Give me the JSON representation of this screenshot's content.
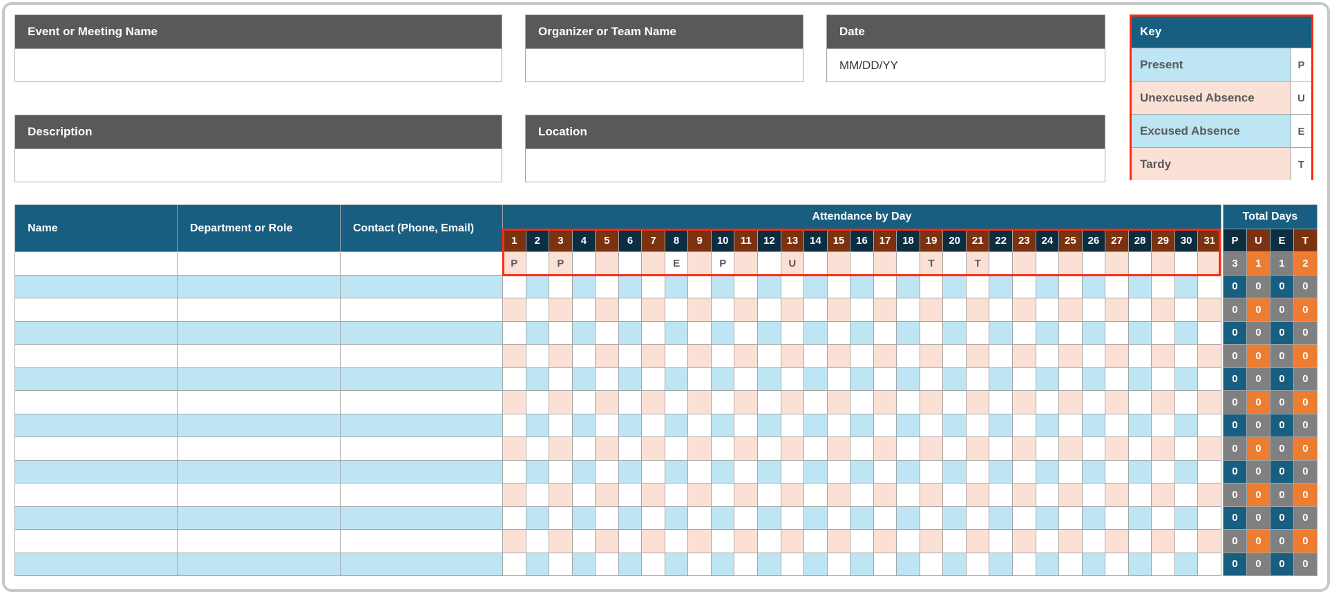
{
  "fields": {
    "event": {
      "label": "Event or Meeting Name",
      "value": ""
    },
    "organizer": {
      "label": "Organizer or Team Name",
      "value": ""
    },
    "date": {
      "label": "Date",
      "value": "MM/DD/YY"
    },
    "description": {
      "label": "Description",
      "value": ""
    },
    "location": {
      "label": "Location",
      "value": ""
    }
  },
  "key": {
    "title": "Key",
    "items": [
      {
        "label": "Present",
        "code": "P"
      },
      {
        "label": "Unexcused Absence",
        "code": "U"
      },
      {
        "label": "Excused Absence",
        "code": "E"
      },
      {
        "label": "Tardy",
        "code": "T"
      }
    ]
  },
  "table": {
    "headers": {
      "name": "Name",
      "dept": "Department or Role",
      "contact": "Contact (Phone, Email)",
      "attendance": "Attendance by Day",
      "totals": "Total Days"
    },
    "days": [
      "1",
      "2",
      "3",
      "4",
      "5",
      "6",
      "7",
      "8",
      "9",
      "10",
      "11",
      "12",
      "13",
      "14",
      "15",
      "16",
      "17",
      "18",
      "19",
      "20",
      "21",
      "22",
      "23",
      "24",
      "25",
      "26",
      "27",
      "28",
      "29",
      "30",
      "31"
    ],
    "total_codes": [
      "P",
      "U",
      "E",
      "T"
    ],
    "rows": [
      {
        "name": "",
        "dept": "",
        "contact": "",
        "marks": {
          "1": "P",
          "3": "P",
          "8": "E",
          "10": "P",
          "13": "U",
          "19": "T",
          "21": "T"
        },
        "totals": [
          "3",
          "1",
          "1",
          "2"
        ]
      },
      {
        "name": "",
        "dept": "",
        "contact": "",
        "marks": {},
        "totals": [
          "0",
          "0",
          "0",
          "0"
        ]
      },
      {
        "name": "",
        "dept": "",
        "contact": "",
        "marks": {},
        "totals": [
          "0",
          "0",
          "0",
          "0"
        ]
      },
      {
        "name": "",
        "dept": "",
        "contact": "",
        "marks": {},
        "totals": [
          "0",
          "0",
          "0",
          "0"
        ]
      },
      {
        "name": "",
        "dept": "",
        "contact": "",
        "marks": {},
        "totals": [
          "0",
          "0",
          "0",
          "0"
        ]
      },
      {
        "name": "",
        "dept": "",
        "contact": "",
        "marks": {},
        "totals": [
          "0",
          "0",
          "0",
          "0"
        ]
      },
      {
        "name": "",
        "dept": "",
        "contact": "",
        "marks": {},
        "totals": [
          "0",
          "0",
          "0",
          "0"
        ]
      },
      {
        "name": "",
        "dept": "",
        "contact": "",
        "marks": {},
        "totals": [
          "0",
          "0",
          "0",
          "0"
        ]
      },
      {
        "name": "",
        "dept": "",
        "contact": "",
        "marks": {},
        "totals": [
          "0",
          "0",
          "0",
          "0"
        ]
      },
      {
        "name": "",
        "dept": "",
        "contact": "",
        "marks": {},
        "totals": [
          "0",
          "0",
          "0",
          "0"
        ]
      },
      {
        "name": "",
        "dept": "",
        "contact": "",
        "marks": {},
        "totals": [
          "0",
          "0",
          "0",
          "0"
        ]
      },
      {
        "name": "",
        "dept": "",
        "contact": "",
        "marks": {},
        "totals": [
          "0",
          "0",
          "0",
          "0"
        ]
      },
      {
        "name": "",
        "dept": "",
        "contact": "",
        "marks": {},
        "totals": [
          "0",
          "0",
          "0",
          "0"
        ]
      },
      {
        "name": "",
        "dept": "",
        "contact": "",
        "marks": {},
        "totals": [
          "0",
          "0",
          "0",
          "0"
        ]
      }
    ]
  },
  "colors": {
    "header_blue": "#175e80",
    "header_gray": "#595959",
    "light_blue": "#bee5f3",
    "peach": "#fbe0d6",
    "brown": "#7a3210",
    "navy": "#0d2e40",
    "orange": "#ed7d31",
    "highlight": "#ff2a10"
  }
}
